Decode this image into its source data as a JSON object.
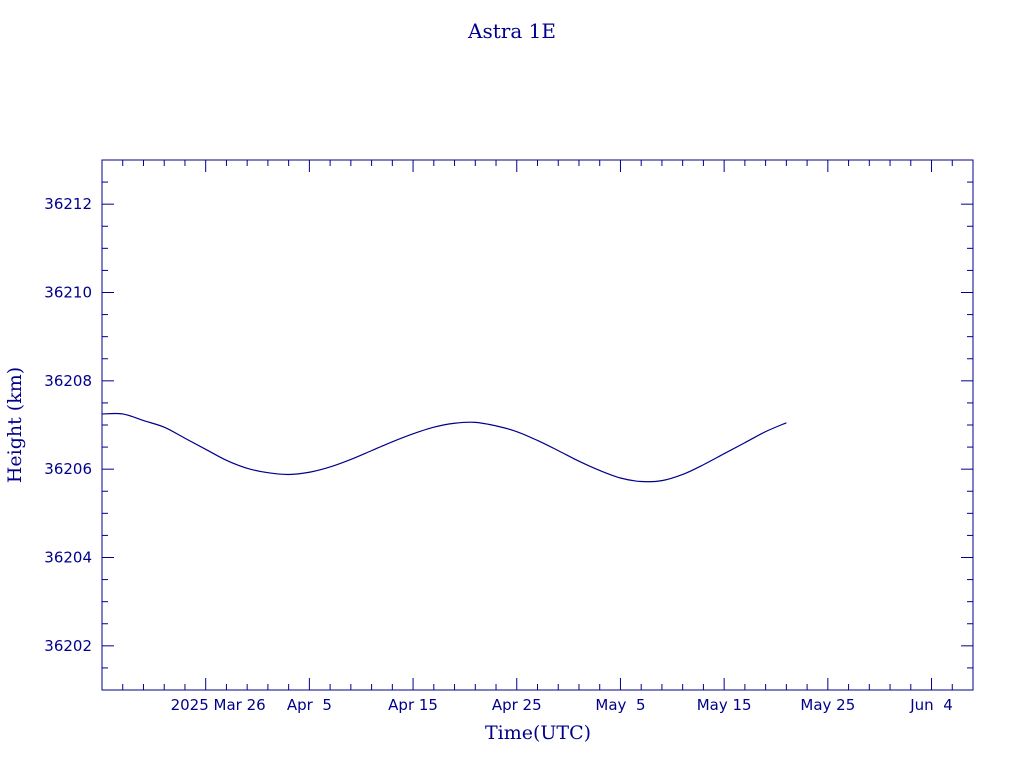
{
  "colors": {
    "ink": "#00008b",
    "background": "#ffffff"
  },
  "chart_data": {
    "type": "line",
    "title": "Astra 1E",
    "xlabel": "Time(UTC)",
    "ylabel": "Height (km)",
    "x_date_format": "YYYY-MM-DD",
    "xlim": [
      "2025-03-16",
      "2025-06-08"
    ],
    "ylim": [
      36201,
      36213
    ],
    "y_ticks": [
      36202,
      36204,
      36206,
      36208,
      36210,
      36212
    ],
    "y_tick_labels": [
      "36202",
      "36204",
      "36206",
      "36208",
      "36210",
      "36212"
    ],
    "x_ticks": [
      "2025-03-26",
      "2025-04-05",
      "2025-04-15",
      "2025-04-25",
      "2025-05-05",
      "2025-05-15",
      "2025-05-25",
      "2025-06-04"
    ],
    "x_tick_labels": [
      "2025 Mar 26",
      "Apr  5",
      "Apr 15",
      "Apr 25",
      "May  5",
      "May 15",
      "May 25",
      "Jun  4"
    ],
    "grid": false,
    "series": [
      {
        "color": "#00008b",
        "x": [
          "2025-03-16",
          "2025-03-18",
          "2025-03-20",
          "2025-03-22",
          "2025-03-24",
          "2025-03-26",
          "2025-03-28",
          "2025-03-30",
          "2025-04-01",
          "2025-04-03",
          "2025-04-05",
          "2025-04-07",
          "2025-04-09",
          "2025-04-11",
          "2025-04-13",
          "2025-04-15",
          "2025-04-17",
          "2025-04-19",
          "2025-04-21",
          "2025-04-23",
          "2025-04-25",
          "2025-04-27",
          "2025-04-29",
          "2025-05-01",
          "2025-05-03",
          "2025-05-05",
          "2025-05-07",
          "2025-05-09",
          "2025-05-11",
          "2025-05-13",
          "2025-05-15",
          "2025-05-17",
          "2025-05-19",
          "2025-05-21"
        ],
        "y": [
          36207.25,
          36207.25,
          36207.1,
          36206.95,
          36206.7,
          36206.45,
          36206.2,
          36206.02,
          36205.92,
          36205.88,
          36205.93,
          36206.05,
          36206.22,
          36206.42,
          36206.62,
          36206.8,
          36206.95,
          36207.04,
          36207.06,
          36206.98,
          36206.85,
          36206.65,
          36206.42,
          36206.18,
          36205.97,
          36205.8,
          36205.72,
          36205.74,
          36205.88,
          36206.1,
          36206.35,
          36206.6,
          36206.85,
          36207.05
        ]
      }
    ]
  }
}
